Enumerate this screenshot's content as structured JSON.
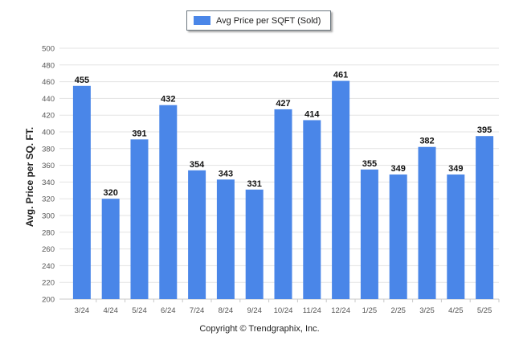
{
  "legend": {
    "label": "Avg Price per SQFT (Sold)"
  },
  "footer": {
    "copyright": "Copyright © Trendgraphix, Inc."
  },
  "colors": {
    "bar": "#4a86e8",
    "grid": "#e3e3e3",
    "axis_text": "#555555"
  },
  "chart_data": {
    "type": "bar",
    "title": "",
    "xlabel": "",
    "ylabel": "Avg. Price per SQ. FT.",
    "ylim": [
      200,
      500
    ],
    "yticks": [
      200,
      220,
      240,
      260,
      280,
      300,
      320,
      340,
      360,
      380,
      400,
      420,
      440,
      460,
      480,
      500
    ],
    "grid": true,
    "legend_position": "top-center",
    "categories": [
      "3/24",
      "4/24",
      "5/24",
      "6/24",
      "7/24",
      "8/24",
      "9/24",
      "10/24",
      "11/24",
      "12/24",
      "1/25",
      "2/25",
      "3/25",
      "4/25",
      "5/25"
    ],
    "series": [
      {
        "name": "Avg Price per SQFT (Sold)",
        "values": [
          455,
          320,
          391,
          432,
          354,
          343,
          331,
          427,
          414,
          461,
          355,
          349,
          382,
          349,
          395
        ]
      }
    ]
  }
}
